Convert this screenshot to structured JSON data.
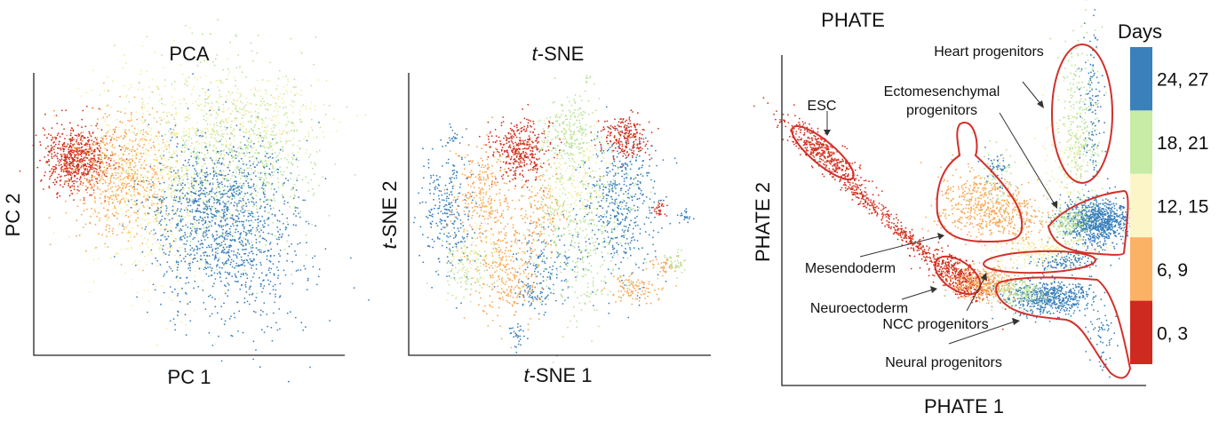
{
  "chart_data": [
    {
      "type": "scatter",
      "title": "PCA",
      "xlabel": "PC 1",
      "ylabel": "PC 2",
      "grid": false,
      "color_by": "Days"
    },
    {
      "type": "scatter",
      "title_italic": "t",
      "title_rest": "-SNE",
      "xlabel_italic": "t",
      "xlabel_rest": "-SNE 1",
      "ylabel_italic": "t",
      "ylabel_rest": "-SNE 2",
      "grid": false,
      "color_by": "Days"
    },
    {
      "type": "scatter",
      "title": "PHATE",
      "xlabel": "PHATE 1",
      "ylabel": "PHATE 2",
      "grid": false,
      "color_by": "Days",
      "annotations": [
        "ESC",
        "Heart progenitors",
        "Ectomesenchymal",
        "progenitors",
        "Mesendoderm",
        "Neuroectoderm",
        "NCC progenitors",
        "Neural progenitors"
      ]
    }
  ],
  "legend": {
    "title": "Days",
    "placement": "right",
    "entries": [
      {
        "label": "24, 27",
        "color": "#3a80bb"
      },
      {
        "label": "18, 21",
        "color": "#c8eba5"
      },
      {
        "label": "12, 15",
        "color": "#fbf5c8"
      },
      {
        "label": "6, 9",
        "color": "#fbb264"
      },
      {
        "label": "0, 3",
        "color": "#cf2a1f"
      }
    ]
  },
  "point_colors": [
    "#d3301f",
    "#f9a651",
    "#f3eea0",
    "#b9e29a",
    "#3a80bb"
  ],
  "outline_color": "#d2302a"
}
